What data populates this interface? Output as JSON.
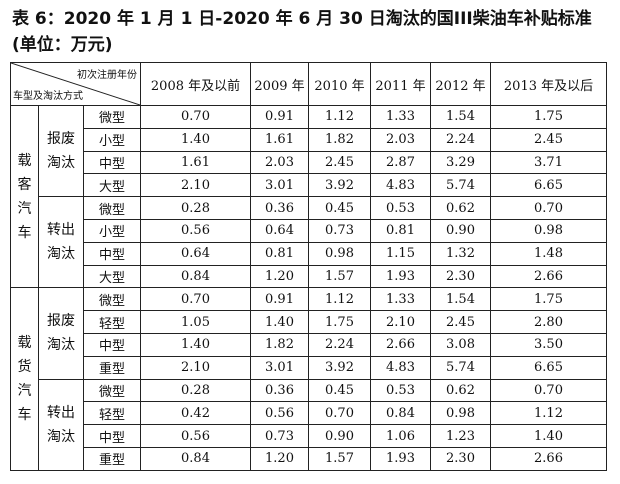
{
  "title": "表 6：2020 年 1 月 1 日-2020 年 6 月 30 日淘汰的国III柴油车补贴标准(单位：万元)",
  "table": {
    "corner": {
      "top": "初次注册年份",
      "bottom": "车型及淘汰方式"
    },
    "columns": [
      "2008 年及以前",
      "2009 年",
      "2010 年",
      "2011 年",
      "2012 年",
      "2013 年及以后"
    ],
    "groups": [
      {
        "label": "载客汽车",
        "methods": [
          {
            "label": "报废淘汰",
            "rows": [
              {
                "size": "微型",
                "values": [
                  "0.70",
                  "0.91",
                  "1.12",
                  "1.33",
                  "1.54",
                  "1.75"
                ]
              },
              {
                "size": "小型",
                "values": [
                  "1.40",
                  "1.61",
                  "1.82",
                  "2.03",
                  "2.24",
                  "2.45"
                ]
              },
              {
                "size": "中型",
                "values": [
                  "1.61",
                  "2.03",
                  "2.45",
                  "2.87",
                  "3.29",
                  "3.71"
                ]
              },
              {
                "size": "大型",
                "values": [
                  "2.10",
                  "3.01",
                  "3.92",
                  "4.83",
                  "5.74",
                  "6.65"
                ]
              }
            ]
          },
          {
            "label": "转出淘汰",
            "rows": [
              {
                "size": "微型",
                "values": [
                  "0.28",
                  "0.36",
                  "0.45",
                  "0.53",
                  "0.62",
                  "0.70"
                ]
              },
              {
                "size": "小型",
                "values": [
                  "0.56",
                  "0.64",
                  "0.73",
                  "0.81",
                  "0.90",
                  "0.98"
                ]
              },
              {
                "size": "中型",
                "values": [
                  "0.64",
                  "0.81",
                  "0.98",
                  "1.15",
                  "1.32",
                  "1.48"
                ]
              },
              {
                "size": "大型",
                "values": [
                  "0.84",
                  "1.20",
                  "1.57",
                  "1.93",
                  "2.30",
                  "2.66"
                ]
              }
            ]
          }
        ]
      },
      {
        "label": "载货汽车",
        "methods": [
          {
            "label": "报废淘汰",
            "rows": [
              {
                "size": "微型",
                "values": [
                  "0.70",
                  "0.91",
                  "1.12",
                  "1.33",
                  "1.54",
                  "1.75"
                ]
              },
              {
                "size": "轻型",
                "values": [
                  "1.05",
                  "1.40",
                  "1.75",
                  "2.10",
                  "2.45",
                  "2.80"
                ]
              },
              {
                "size": "中型",
                "values": [
                  "1.40",
                  "1.82",
                  "2.24",
                  "2.66",
                  "3.08",
                  "3.50"
                ]
              },
              {
                "size": "重型",
                "values": [
                  "2.10",
                  "3.01",
                  "3.92",
                  "4.83",
                  "5.74",
                  "6.65"
                ]
              }
            ]
          },
          {
            "label": "转出淘汰",
            "rows": [
              {
                "size": "微型",
                "values": [
                  "0.28",
                  "0.36",
                  "0.45",
                  "0.53",
                  "0.62",
                  "0.70"
                ]
              },
              {
                "size": "轻型",
                "values": [
                  "0.42",
                  "0.56",
                  "0.70",
                  "0.84",
                  "0.98",
                  "1.12"
                ]
              },
              {
                "size": "中型",
                "values": [
                  "0.56",
                  "0.73",
                  "0.90",
                  "1.06",
                  "1.23",
                  "1.40"
                ]
              },
              {
                "size": "重型",
                "values": [
                  "0.84",
                  "1.20",
                  "1.57",
                  "1.93",
                  "2.30",
                  "2.66"
                ]
              }
            ]
          }
        ]
      }
    ]
  }
}
